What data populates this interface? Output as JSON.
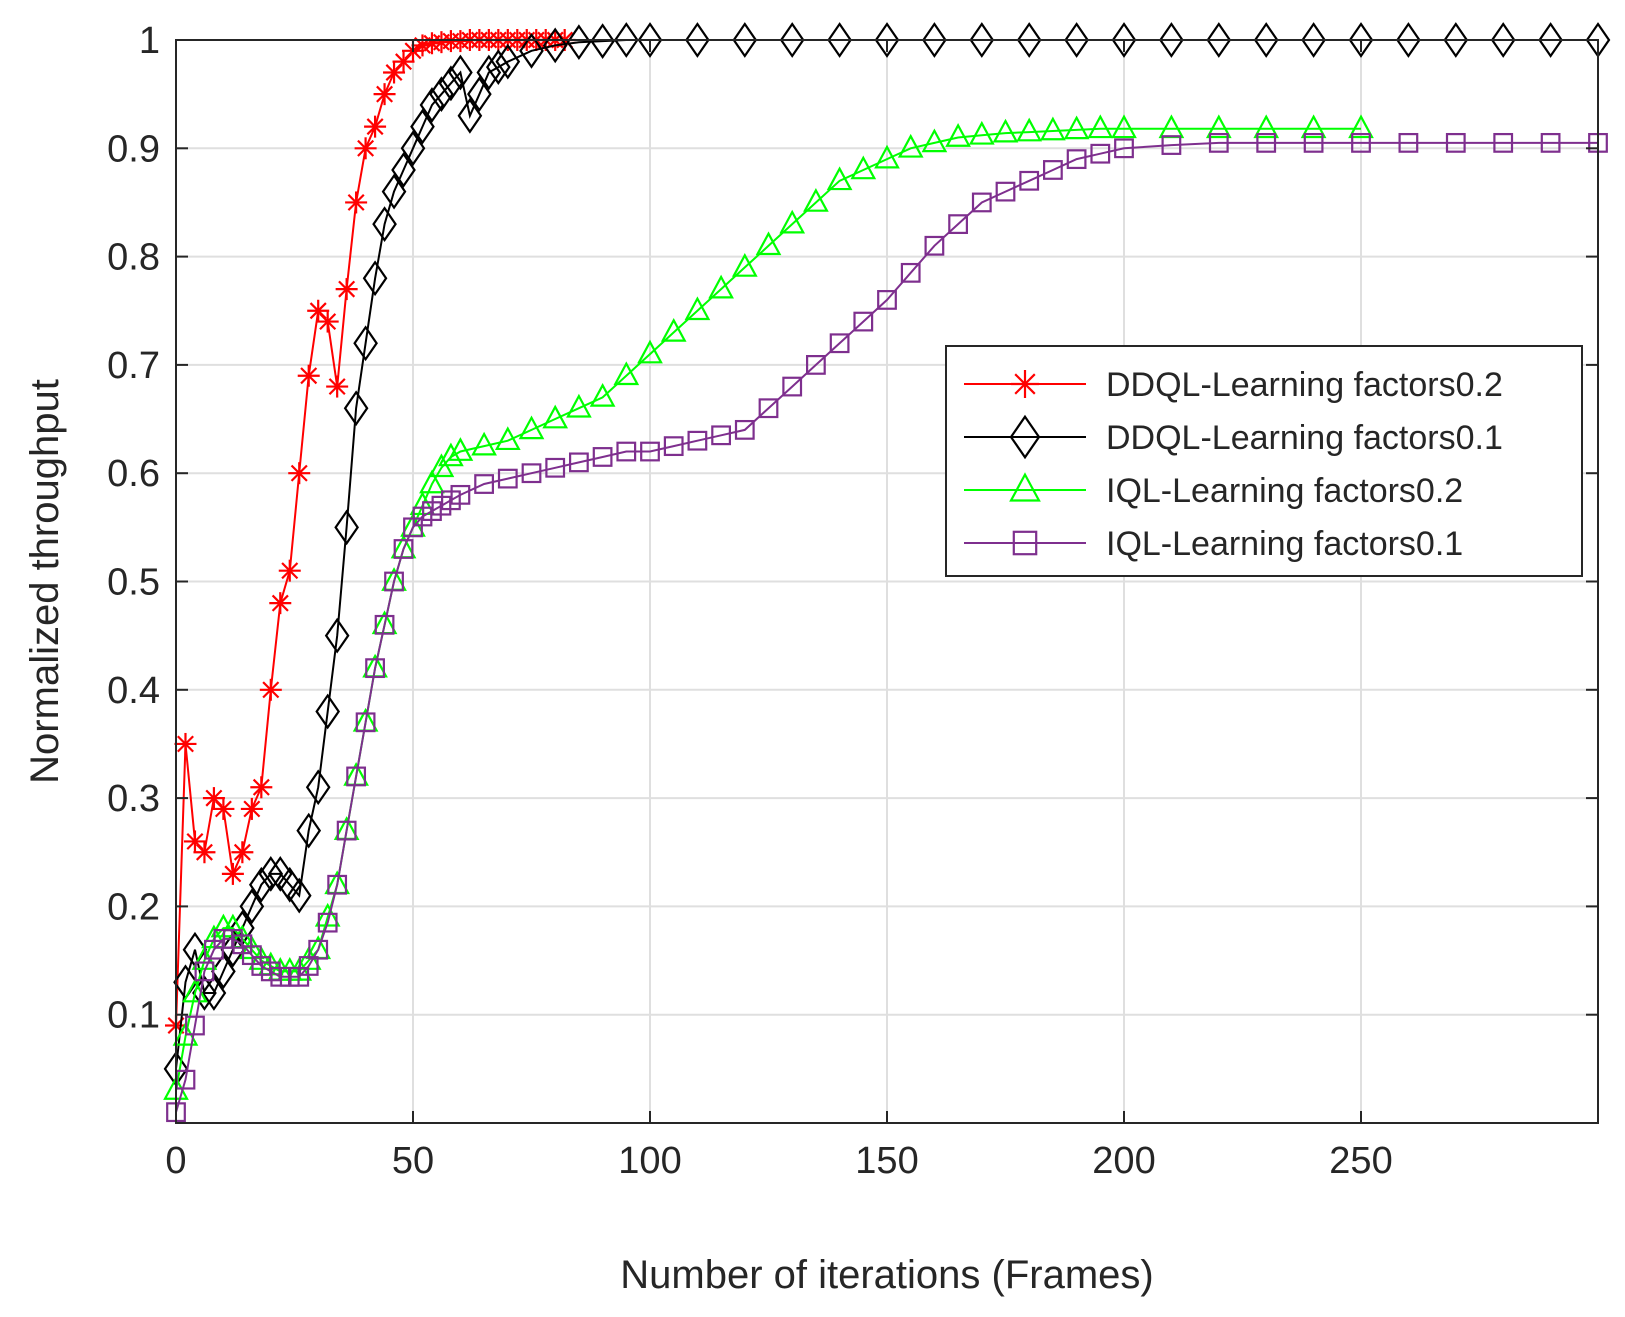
{
  "chart_data": {
    "type": "line",
    "title": "",
    "xlabel": "Number of iterations (Frames)",
    "ylabel": "Normalized throughput",
    "xlim": [
      0,
      300
    ],
    "ylim": [
      0,
      1
    ],
    "xticks": [
      0,
      50,
      100,
      150,
      200,
      250
    ],
    "xtick_labels": [
      "0",
      "50",
      "100",
      "150",
      "200",
      "250"
    ],
    "yticks": [
      0.1,
      0.2,
      0.3,
      0.4,
      0.5,
      0.6,
      0.7,
      0.8,
      0.9,
      1
    ],
    "ytick_labels": [
      "0.1",
      "0.2",
      "0.3",
      "0.4",
      "0.5",
      "0.6",
      "0.7",
      "0.8",
      "0.9",
      "1"
    ],
    "grid": true,
    "legend_position": "right-center",
    "series": [
      {
        "name": "DDQL-Learning factors0.2",
        "color": "#ff0000",
        "marker": "asterisk",
        "x": [
          0,
          2,
          4,
          6,
          8,
          10,
          12,
          14,
          16,
          18,
          20,
          22,
          24,
          26,
          28,
          30,
          32,
          34,
          36,
          38,
          40,
          42,
          44,
          46,
          48,
          50,
          52,
          54,
          56,
          58,
          60,
          62,
          64,
          66,
          68,
          70,
          72,
          74,
          76,
          78,
          80,
          82
        ],
        "values": [
          0.09,
          0.35,
          0.26,
          0.25,
          0.3,
          0.29,
          0.23,
          0.25,
          0.29,
          0.31,
          0.4,
          0.48,
          0.51,
          0.6,
          0.69,
          0.75,
          0.74,
          0.68,
          0.77,
          0.85,
          0.9,
          0.92,
          0.95,
          0.97,
          0.98,
          0.99,
          0.995,
          0.997,
          0.998,
          0.999,
          0.999,
          1,
          1,
          1,
          1,
          1,
          1,
          1,
          1,
          1,
          1,
          1
        ]
      },
      {
        "name": "DDQL-Learning factors0.1",
        "color": "#000000",
        "marker": "diamond",
        "x": [
          0,
          2,
          4,
          6,
          8,
          10,
          12,
          14,
          16,
          18,
          20,
          22,
          24,
          26,
          28,
          30,
          32,
          34,
          36,
          38,
          40,
          42,
          44,
          46,
          48,
          50,
          52,
          54,
          56,
          58,
          60,
          62,
          64,
          66,
          68,
          70,
          75,
          80,
          85,
          90,
          95,
          100,
          110,
          120,
          130,
          140,
          150,
          160,
          170,
          180,
          190,
          200,
          210,
          220,
          230,
          240,
          250,
          260,
          270,
          280,
          290,
          300
        ],
        "values": [
          0.05,
          0.13,
          0.16,
          0.12,
          0.12,
          0.14,
          0.16,
          0.18,
          0.2,
          0.22,
          0.23,
          0.23,
          0.22,
          0.21,
          0.27,
          0.31,
          0.38,
          0.45,
          0.55,
          0.66,
          0.72,
          0.78,
          0.83,
          0.86,
          0.88,
          0.9,
          0.92,
          0.94,
          0.95,
          0.96,
          0.97,
          0.93,
          0.95,
          0.97,
          0.975,
          0.98,
          0.99,
          0.995,
          0.998,
          0.999,
          1,
          1,
          1,
          1,
          1,
          1,
          1,
          1,
          1,
          1,
          1,
          1,
          1,
          1,
          1,
          1,
          1,
          1,
          1,
          1,
          1,
          1
        ]
      },
      {
        "name": "IQL-Learning factors0.2",
        "color": "#00ff00",
        "marker": "triangle",
        "x": [
          0,
          2,
          4,
          6,
          8,
          10,
          12,
          14,
          16,
          18,
          20,
          22,
          24,
          26,
          28,
          30,
          32,
          34,
          36,
          38,
          40,
          42,
          44,
          46,
          48,
          50,
          52,
          54,
          56,
          58,
          60,
          65,
          70,
          75,
          80,
          85,
          90,
          95,
          100,
          105,
          110,
          115,
          120,
          125,
          130,
          135,
          140,
          145,
          150,
          155,
          160,
          165,
          170,
          175,
          180,
          185,
          190,
          195,
          200,
          210,
          220,
          230,
          240,
          250
        ],
        "values": [
          0.03,
          0.08,
          0.12,
          0.15,
          0.17,
          0.18,
          0.18,
          0.17,
          0.16,
          0.15,
          0.145,
          0.14,
          0.14,
          0.14,
          0.15,
          0.16,
          0.19,
          0.22,
          0.27,
          0.32,
          0.37,
          0.42,
          0.46,
          0.5,
          0.53,
          0.55,
          0.57,
          0.59,
          0.605,
          0.615,
          0.62,
          0.625,
          0.63,
          0.64,
          0.65,
          0.66,
          0.67,
          0.69,
          0.71,
          0.73,
          0.75,
          0.77,
          0.79,
          0.81,
          0.83,
          0.85,
          0.87,
          0.88,
          0.89,
          0.9,
          0.905,
          0.91,
          0.912,
          0.914,
          0.915,
          0.916,
          0.917,
          0.918,
          0.918,
          0.918,
          0.918,
          0.918,
          0.918,
          0.918
        ]
      },
      {
        "name": "IQL-Learning factors0.1",
        "color": "#7e2f8e",
        "marker": "square",
        "x": [
          0,
          2,
          4,
          6,
          8,
          10,
          12,
          14,
          16,
          18,
          20,
          22,
          24,
          26,
          28,
          30,
          32,
          34,
          36,
          38,
          40,
          42,
          44,
          46,
          48,
          50,
          52,
          54,
          56,
          58,
          60,
          65,
          70,
          75,
          80,
          85,
          90,
          95,
          100,
          105,
          110,
          115,
          120,
          125,
          130,
          135,
          140,
          145,
          150,
          155,
          160,
          165,
          170,
          175,
          180,
          185,
          190,
          195,
          200,
          210,
          220,
          230,
          240,
          250,
          260,
          270,
          280,
          290,
          300
        ],
        "values": [
          0.01,
          0.04,
          0.09,
          0.14,
          0.16,
          0.17,
          0.17,
          0.165,
          0.155,
          0.145,
          0.14,
          0.135,
          0.135,
          0.135,
          0.145,
          0.16,
          0.185,
          0.22,
          0.27,
          0.32,
          0.37,
          0.42,
          0.46,
          0.5,
          0.53,
          0.55,
          0.56,
          0.565,
          0.57,
          0.575,
          0.58,
          0.59,
          0.595,
          0.6,
          0.605,
          0.61,
          0.615,
          0.62,
          0.62,
          0.625,
          0.63,
          0.635,
          0.64,
          0.66,
          0.68,
          0.7,
          0.72,
          0.74,
          0.76,
          0.785,
          0.81,
          0.83,
          0.85,
          0.86,
          0.87,
          0.88,
          0.89,
          0.895,
          0.9,
          0.903,
          0.905,
          0.905,
          0.905,
          0.905,
          0.905,
          0.905,
          0.905,
          0.905,
          0.905
        ]
      }
    ]
  }
}
